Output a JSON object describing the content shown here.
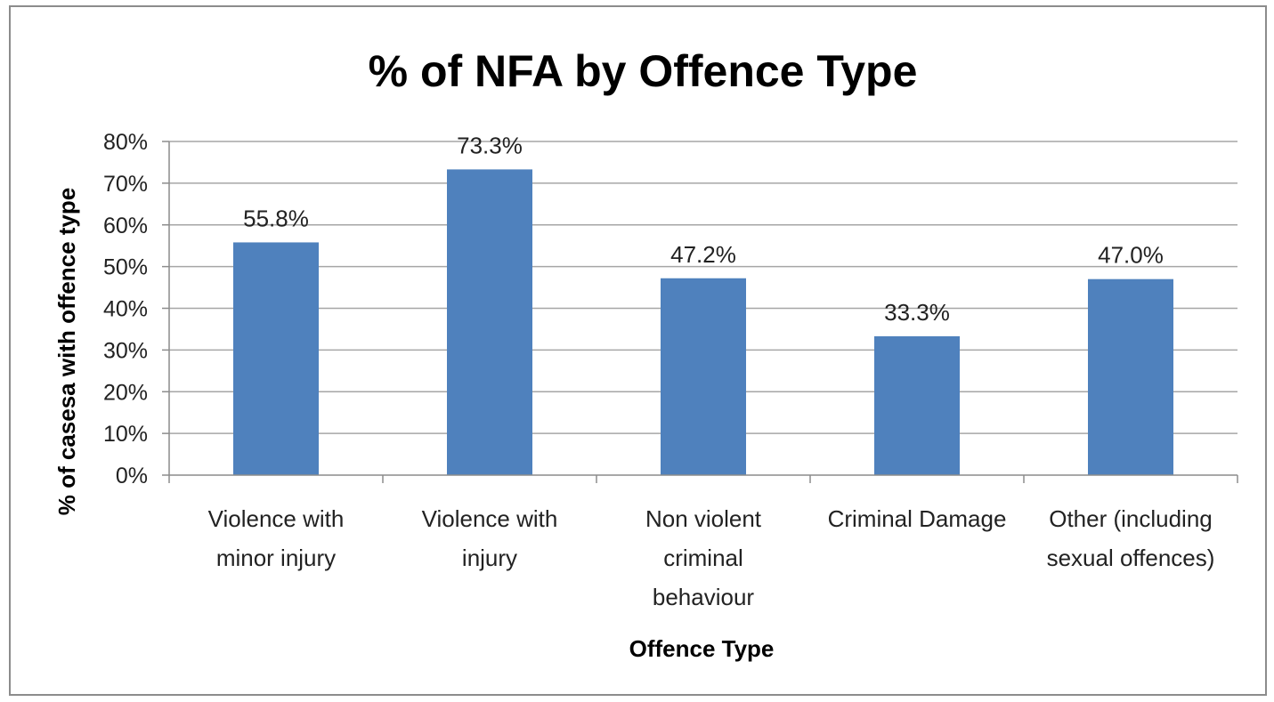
{
  "chart_data": {
    "type": "bar",
    "title": "% of NFA by Offence Type",
    "xlabel": "Offence Type",
    "ylabel": "% of casesa with offence type",
    "categories": [
      [
        "Violence with",
        "minor injury"
      ],
      [
        "Violence with",
        "injury"
      ],
      [
        "Non violent",
        "criminal",
        "behaviour"
      ],
      [
        "Criminal Damage"
      ],
      [
        "Other (including",
        "sexual offences)"
      ]
    ],
    "values": [
      55.8,
      73.3,
      47.2,
      33.3,
      47.0
    ],
    "data_labels": [
      "55.8%",
      "73.3%",
      "47.2%",
      "33.3%",
      "47.0%"
    ],
    "ylim": [
      0,
      80
    ],
    "yticks": [
      0,
      10,
      20,
      30,
      40,
      50,
      60,
      70,
      80
    ],
    "ytick_labels": [
      "0%",
      "10%",
      "20%",
      "30%",
      "40%",
      "50%",
      "60%",
      "70%",
      "80%"
    ],
    "grid": true,
    "legend": "none",
    "colors": {
      "bar": "#4f81bd",
      "grid": "#a6a6a6",
      "axis": "#8c8c8c"
    }
  }
}
